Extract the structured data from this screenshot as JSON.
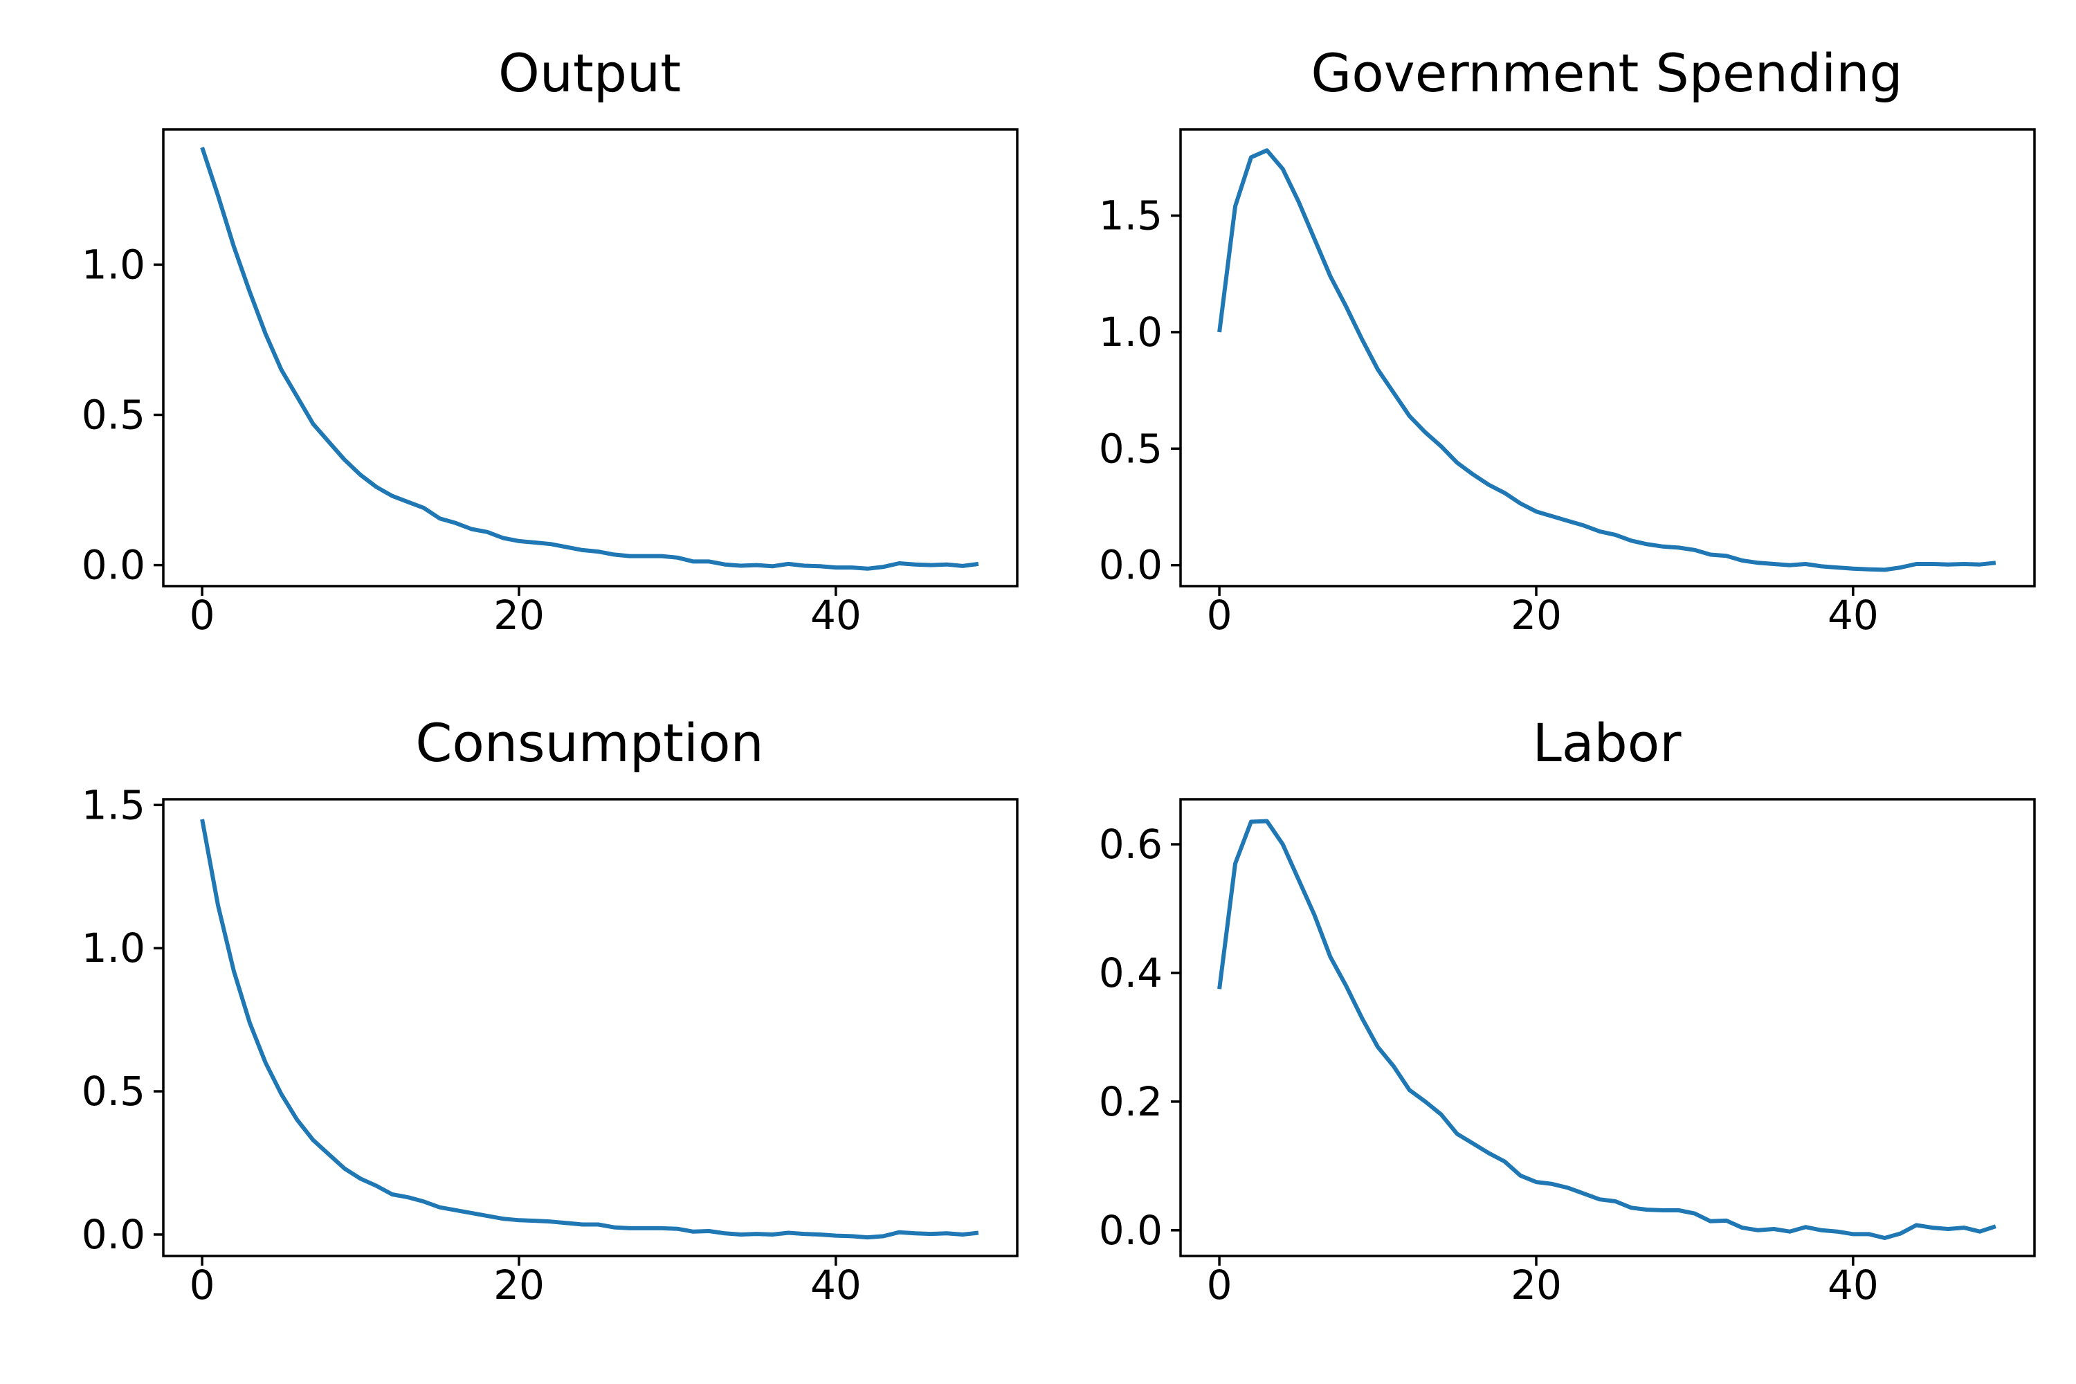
{
  "figure": {
    "background": "#ffffff",
    "line_color": "#1f77b4"
  },
  "chart_data": [
    {
      "type": "line",
      "title": "Output",
      "xlabel": "",
      "ylabel": "",
      "xlim": [
        -2.45,
        51.45
      ],
      "ylim": [
        -0.07,
        1.45
      ],
      "xticks": [
        0,
        20,
        40
      ],
      "xtick_labels": [
        "0",
        "20",
        "40"
      ],
      "yticks": [
        0.0,
        0.5,
        1.0
      ],
      "ytick_labels": [
        "0.0",
        "0.5",
        "1.0"
      ],
      "grid": false,
      "legend": "none",
      "x": [
        0,
        1,
        2,
        3,
        4,
        5,
        6,
        7,
        8,
        9,
        10,
        11,
        12,
        13,
        14,
        15,
        16,
        17,
        18,
        19,
        20,
        21,
        22,
        23,
        24,
        25,
        26,
        27,
        28,
        29,
        30,
        31,
        32,
        33,
        34,
        35,
        36,
        37,
        38,
        39,
        40,
        41,
        42,
        43,
        44,
        45,
        46,
        47,
        48,
        49
      ],
      "series": [
        {
          "values": [
            1.39,
            1.23,
            1.06,
            0.91,
            0.77,
            0.65,
            0.56,
            0.47,
            0.41,
            0.35,
            0.3,
            0.26,
            0.23,
            0.21,
            0.19,
            0.155,
            0.14,
            0.12,
            0.11,
            0.09,
            0.08,
            0.075,
            0.07,
            0.06,
            0.05,
            0.045,
            0.035,
            0.03,
            0.03,
            0.03,
            0.025,
            0.012,
            0.012,
            0.002,
            -0.002,
            0.0,
            -0.004,
            0.004,
            -0.002,
            -0.004,
            -0.008,
            -0.008,
            -0.012,
            -0.006,
            0.006,
            0.002,
            0.0,
            0.002,
            -0.003,
            0.004
          ]
        }
      ]
    },
    {
      "type": "line",
      "title": "Government Spending",
      "xlabel": "",
      "ylabel": "",
      "xlim": [
        -2.45,
        51.45
      ],
      "ylim": [
        -0.09,
        1.87
      ],
      "xticks": [
        0,
        20,
        40
      ],
      "xtick_labels": [
        "0",
        "20",
        "40"
      ],
      "yticks": [
        0.0,
        0.5,
        1.0,
        1.5
      ],
      "ytick_labels": [
        "0.0",
        "0.5",
        "1.0",
        "1.5"
      ],
      "grid": false,
      "legend": "none",
      "x": [
        0,
        1,
        2,
        3,
        4,
        5,
        6,
        7,
        8,
        9,
        10,
        11,
        12,
        13,
        14,
        15,
        16,
        17,
        18,
        19,
        20,
        21,
        22,
        23,
        24,
        25,
        26,
        27,
        28,
        29,
        30,
        31,
        32,
        33,
        34,
        35,
        36,
        37,
        38,
        39,
        40,
        41,
        42,
        43,
        44,
        45,
        46,
        47,
        48,
        49
      ],
      "series": [
        {
          "values": [
            1.0,
            1.54,
            1.75,
            1.78,
            1.7,
            1.56,
            1.4,
            1.24,
            1.11,
            0.97,
            0.84,
            0.74,
            0.64,
            0.57,
            0.51,
            0.44,
            0.39,
            0.345,
            0.31,
            0.265,
            0.23,
            0.21,
            0.19,
            0.17,
            0.145,
            0.13,
            0.105,
            0.09,
            0.08,
            0.075,
            0.065,
            0.045,
            0.04,
            0.02,
            0.01,
            0.005,
            0.0,
            0.005,
            -0.005,
            -0.01,
            -0.015,
            -0.018,
            -0.02,
            -0.01,
            0.005,
            0.005,
            0.003,
            0.005,
            0.003,
            0.01
          ]
        }
      ]
    },
    {
      "type": "line",
      "title": "Consumption",
      "xlabel": "",
      "ylabel": "",
      "xlim": [
        -2.45,
        51.45
      ],
      "ylim": [
        -0.075,
        1.52
      ],
      "xticks": [
        0,
        20,
        40
      ],
      "xtick_labels": [
        "0",
        "20",
        "40"
      ],
      "yticks": [
        0.0,
        0.5,
        1.0,
        1.5
      ],
      "ytick_labels": [
        "0.0",
        "0.5",
        "1.0",
        "1.5"
      ],
      "grid": false,
      "legend": "none",
      "x": [
        0,
        1,
        2,
        3,
        4,
        5,
        6,
        7,
        8,
        9,
        10,
        11,
        12,
        13,
        14,
        15,
        16,
        17,
        18,
        19,
        20,
        21,
        22,
        23,
        24,
        25,
        26,
        27,
        28,
        29,
        30,
        31,
        32,
        33,
        34,
        35,
        36,
        37,
        38,
        39,
        40,
        41,
        42,
        43,
        44,
        45,
        46,
        47,
        48,
        49
      ],
      "series": [
        {
          "values": [
            1.45,
            1.15,
            0.92,
            0.74,
            0.6,
            0.49,
            0.4,
            0.33,
            0.28,
            0.23,
            0.195,
            0.17,
            0.14,
            0.13,
            0.115,
            0.095,
            0.085,
            0.075,
            0.065,
            0.055,
            0.05,
            0.048,
            0.045,
            0.04,
            0.035,
            0.035,
            0.025,
            0.022,
            0.022,
            0.022,
            0.02,
            0.01,
            0.012,
            0.004,
            0.0,
            0.002,
            0.0,
            0.006,
            0.002,
            0.0,
            -0.004,
            -0.006,
            -0.01,
            -0.006,
            0.008,
            0.004,
            0.002,
            0.004,
            0.0,
            0.006
          ]
        }
      ]
    },
    {
      "type": "line",
      "title": "Labor",
      "xlabel": "",
      "ylabel": "",
      "xlim": [
        -2.45,
        51.45
      ],
      "ylim": [
        -0.04,
        0.67
      ],
      "xticks": [
        0,
        20,
        40
      ],
      "xtick_labels": [
        "0",
        "20",
        "40"
      ],
      "yticks": [
        0.0,
        0.2,
        0.4,
        0.6
      ],
      "ytick_labels": [
        "0.0",
        "0.2",
        "0.4",
        "0.6"
      ],
      "grid": false,
      "legend": "none",
      "x": [
        0,
        1,
        2,
        3,
        4,
        5,
        6,
        7,
        8,
        9,
        10,
        11,
        12,
        13,
        14,
        15,
        16,
        17,
        18,
        19,
        20,
        21,
        22,
        23,
        24,
        25,
        26,
        27,
        28,
        29,
        30,
        31,
        32,
        33,
        34,
        35,
        36,
        37,
        38,
        39,
        40,
        41,
        42,
        43,
        44,
        45,
        46,
        47,
        48,
        49
      ],
      "series": [
        {
          "values": [
            0.375,
            0.57,
            0.635,
            0.636,
            0.6,
            0.545,
            0.49,
            0.425,
            0.38,
            0.33,
            0.285,
            0.255,
            0.218,
            0.2,
            0.18,
            0.15,
            0.135,
            0.12,
            0.107,
            0.085,
            0.075,
            0.072,
            0.066,
            0.057,
            0.048,
            0.045,
            0.035,
            0.032,
            0.031,
            0.031,
            0.026,
            0.014,
            0.015,
            0.004,
            0.0,
            0.002,
            -0.002,
            0.005,
            0.0,
            -0.002,
            -0.006,
            -0.006,
            -0.012,
            -0.005,
            0.008,
            0.004,
            0.002,
            0.004,
            -0.002,
            0.006
          ]
        }
      ]
    }
  ]
}
